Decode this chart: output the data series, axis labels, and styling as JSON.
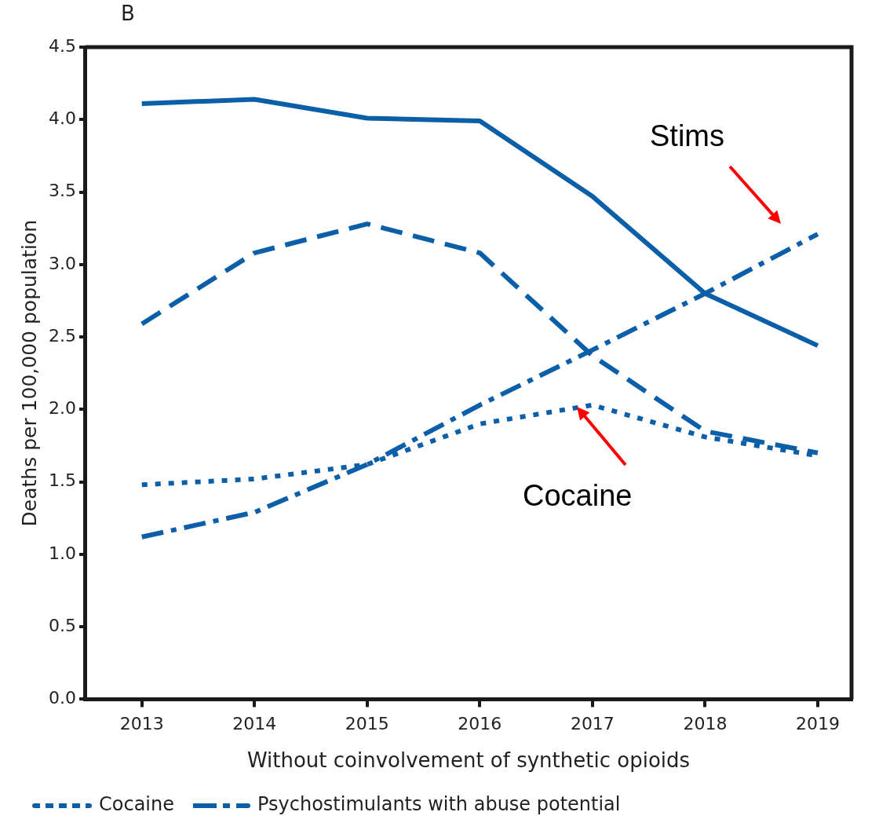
{
  "chart_data": {
    "type": "line",
    "xlabel": "Without coinvolvement of synthetic opioids",
    "ylabel": "Deaths per 100,000 population",
    "x": [
      2013,
      2014,
      2015,
      2016,
      2017,
      2018,
      2019
    ],
    "xlim": [
      2012.5,
      2019.3
    ],
    "xticks": [
      2013,
      2014,
      2015,
      2016,
      2017,
      2018,
      2019
    ],
    "ylim": [
      0,
      4.5
    ],
    "yticks": [
      {
        "value": 0,
        "label": "0.0"
      },
      {
        "value": 0.5,
        "label": "0.5"
      },
      {
        "value": 1,
        "label": "1.0"
      },
      {
        "value": 1.5,
        "label": "1.5"
      },
      {
        "value": 2,
        "label": "2.0"
      },
      {
        "value": 2.5,
        "label": "2.5"
      },
      {
        "value": 3,
        "label": "3.0"
      },
      {
        "value": 3.5,
        "label": "3.5"
      },
      {
        "value": 4,
        "label": "4.0"
      },
      {
        "value": 4.5,
        "label": "4.5"
      }
    ],
    "grid": false,
    "legend": "bottom left",
    "marker": "none",
    "series": [
      {
        "color": "#0b5ea8",
        "line_style": "solid",
        "values": [
          4.11,
          4.14,
          4.01,
          3.99,
          3.47,
          2.8,
          2.44
        ]
      },
      {
        "color": "#0b5ea8",
        "line_style": "dashed",
        "values": [
          2.59,
          3.08,
          3.28,
          3.08,
          2.37,
          1.85,
          1.7
        ]
      },
      {
        "name": "Cocaine",
        "color": "#0b5ea8",
        "line_style": "dotted",
        "values": [
          1.48,
          1.52,
          1.62,
          1.9,
          2.03,
          1.81,
          1.68
        ]
      },
      {
        "name": "Psychostimulants with abuse potential",
        "color": "#0b5ea8",
        "line_style": "dashdot",
        "values": [
          1.12,
          1.29,
          1.62,
          2.03,
          2.41,
          2.8,
          3.21
        ]
      }
    ],
    "annotations": [
      "B",
      "Stims",
      "Cocaine"
    ]
  }
}
